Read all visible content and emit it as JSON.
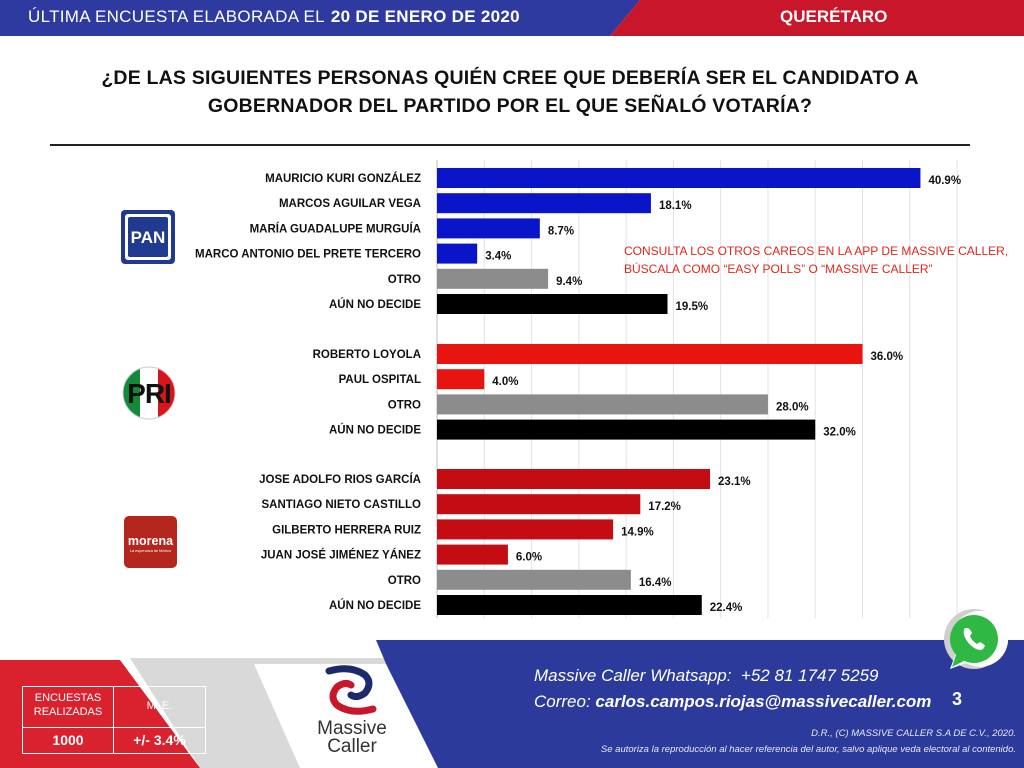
{
  "header": {
    "prefix": "ÚLTIMA ENCUESTA ELABORADA EL",
    "date": "20 DE ENERO DE 2020",
    "region": "QUERÉTARO"
  },
  "question": "¿DE LAS SIGUIENTES PERSONAS QUIÉN CREE QUE DEBERÍA SER EL CANDIDATO A GOBERNADOR DEL PARTIDO POR EL QUE SEÑALÓ VOTARÍA?",
  "note": {
    "line1": "CONSULTA LOS OTROS CAREOS EN LA APP DE MASSIVE CALLER,",
    "line2": "BÚSCALA COMO “EASY POLLS” O “MASSIVE CALLER”"
  },
  "logos": {
    "pan": "PAN",
    "pri": "PRI",
    "morena": "morena",
    "morena_sub": "La esperanza de México"
  },
  "colors": {
    "pan": "#0a14c8",
    "pri": "#e8140f",
    "morena": "#c40d12",
    "otro": "#8c8c8c",
    "aun_no_decide": "#000000",
    "note": "#e0261b",
    "banner_blue": "#2e3aa0",
    "banner_red": "#c8162a"
  },
  "chart_data": {
    "type": "bar",
    "orientation": "horizontal",
    "unit": "%",
    "xlim": [
      0,
      45
    ],
    "grid": true,
    "groups": [
      {
        "party": "PAN",
        "categories": [
          "MAURICIO KURI GONZÁLEZ",
          "MARCOS AGUILAR VEGA",
          "MARÍA GUADALUPE MURGUÍA",
          "MARCO ANTONIO DEL PRETE TERCERO",
          "OTRO",
          "AÚN NO DECIDE"
        ],
        "values": [
          40.9,
          18.1,
          8.7,
          3.4,
          9.4,
          19.5
        ],
        "labels": [
          "40.9%",
          "18.1%",
          "8.7%",
          "3.4%",
          "9.4%",
          "19.5%"
        ],
        "colors": [
          "#0a14c8",
          "#0a14c8",
          "#0a14c8",
          "#0a14c8",
          "#8c8c8c",
          "#000000"
        ]
      },
      {
        "party": "PRI",
        "categories": [
          "ROBERTO LOYOLA",
          "PAUL OSPITAL",
          "OTRO",
          "AÚN NO DECIDE"
        ],
        "values": [
          36.0,
          4.0,
          28.0,
          32.0
        ],
        "labels": [
          "36.0%",
          "4.0%",
          "28.0%",
          "32.0%"
        ],
        "colors": [
          "#e8140f",
          "#e8140f",
          "#8c8c8c",
          "#000000"
        ]
      },
      {
        "party": "MORENA",
        "categories": [
          "JOSE ADOLFO RIOS GARCÍA",
          "SANTIAGO NIETO CASTILLO",
          "GILBERTO HERRERA RUIZ",
          "JUAN JOSÉ JIMÉNEZ YÁNEZ",
          "OTRO",
          "AÚN NO DECIDE"
        ],
        "values": [
          23.1,
          17.2,
          14.9,
          6.0,
          16.4,
          22.4
        ],
        "labels": [
          "23.1%",
          "17.2%",
          "14.9%",
          "6.0%",
          "16.4%",
          "22.4%"
        ],
        "colors": [
          "#c40d12",
          "#c40d12",
          "#c40d12",
          "#c40d12",
          "#8c8c8c",
          "#000000"
        ]
      }
    ]
  },
  "stats": {
    "h1": "ENCUESTAS",
    "h2": "REALIZADAS",
    "h3": "M. E.",
    "v1": "1000",
    "v2": "+/- 3.4%"
  },
  "brand": {
    "line1": "Massive",
    "line2": "Caller"
  },
  "footer": {
    "whatsapp_label": "Massive Caller Whatsapp:",
    "whatsapp_number": "+52 81 1747 5259",
    "email_label": "Correo:",
    "email": "carlos.campos.riojas@massivecaller.com",
    "page": "3",
    "copyright": "D.R., (C) MASSIVE CALLER S.A DE C.V., 2020.",
    "disclaimer": "Se autoriza la reproducción al hacer referencia del autor, salvo aplique veda electoral al contenido."
  }
}
